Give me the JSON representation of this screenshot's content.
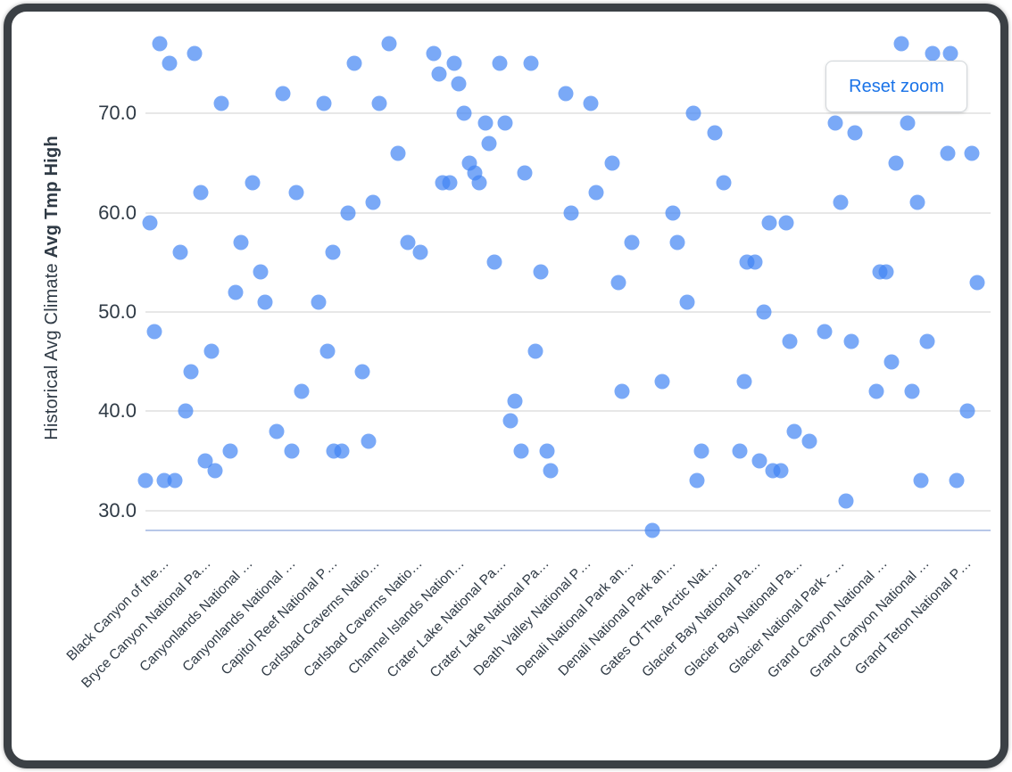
{
  "window": {
    "frame_color": "#3b4045",
    "background": "#ffffff"
  },
  "toolbar": {
    "reset_zoom_label": "Reset zoom"
  },
  "y_axis": {
    "title_prefix": "Historical Avg Climate ",
    "title_bold": "Avg Tmp High"
  },
  "chart_data": {
    "type": "scatter",
    "title": "",
    "xlabel": "",
    "ylabel": "Historical Avg Climate Avg Tmp High",
    "ylim": [
      28,
      78
    ],
    "grid": true,
    "legend_position": "none",
    "y_gridline_values": [
      70,
      60,
      50,
      40,
      30
    ],
    "y_tick_labels": [
      "70.0",
      "60.0",
      "50.0",
      "40.0",
      "30.0"
    ],
    "categories": [
      "Black Canyon of the…",
      "Bryce Canyon National Pa…",
      "Canyonlands National …",
      "Canyonlands National …",
      "Capitol Reef National P…",
      "Carlsbad Caverns Natio…",
      "Carlsbad Caverns Natio…",
      "Channel Islands Nation…",
      "Crater Lake National Pa…",
      "Crater Lake National Pa…",
      "Death Valley National P…",
      "Denali National Park an…",
      "Denali National Park an…",
      "Gates Of The Arctic Nat…",
      "Glacier Bay National Pa…",
      "Glacier Bay National Pa…",
      "Glacier National Park - …",
      "Grand Canyon National …",
      "Grand Canyon National …",
      "Grand Teton National P…"
    ],
    "points_format": "[x_percent_across_plot, avg_tmp_high_value]",
    "points": [
      [
        1.7,
        77
      ],
      [
        5.8,
        76
      ],
      [
        2.9,
        75
      ],
      [
        24.7,
        75
      ],
      [
        28.8,
        77
      ],
      [
        16.3,
        72
      ],
      [
        9.0,
        71
      ],
      [
        21.1,
        71
      ],
      [
        27.7,
        71
      ],
      [
        29.9,
        66
      ],
      [
        12.7,
        63
      ],
      [
        6.5,
        62
      ],
      [
        17.8,
        62
      ],
      [
        26.9,
        61
      ],
      [
        24.0,
        60
      ],
      [
        0.5,
        59
      ],
      [
        4.1,
        56
      ],
      [
        11.3,
        57
      ],
      [
        22.2,
        56
      ],
      [
        31.0,
        57
      ],
      [
        32.5,
        56
      ],
      [
        13.6,
        54
      ],
      [
        10.7,
        52
      ],
      [
        14.1,
        51
      ],
      [
        20.5,
        51
      ],
      [
        1.1,
        48
      ],
      [
        7.8,
        46
      ],
      [
        5.4,
        44
      ],
      [
        21.5,
        46
      ],
      [
        25.7,
        44
      ],
      [
        18.5,
        42
      ],
      [
        4.8,
        40
      ],
      [
        15.5,
        38
      ],
      [
        17.3,
        36
      ],
      [
        26.4,
        37
      ],
      [
        10.0,
        36
      ],
      [
        22.3,
        36
      ],
      [
        23.2,
        36
      ],
      [
        7.1,
        35
      ],
      [
        8.2,
        34
      ],
      [
        0.0,
        33
      ],
      [
        2.2,
        33
      ],
      [
        3.5,
        33
      ],
      [
        34.1,
        76
      ],
      [
        36.5,
        75
      ],
      [
        34.7,
        74
      ],
      [
        37.1,
        73
      ],
      [
        41.9,
        75
      ],
      [
        45.6,
        75
      ],
      [
        49.7,
        72
      ],
      [
        52.7,
        71
      ],
      [
        37.7,
        70
      ],
      [
        40.2,
        69
      ],
      [
        42.6,
        69
      ],
      [
        40.7,
        67
      ],
      [
        38.3,
        65
      ],
      [
        39.0,
        64
      ],
      [
        39.5,
        63
      ],
      [
        35.2,
        63
      ],
      [
        36.0,
        63
      ],
      [
        44.9,
        64
      ],
      [
        55.2,
        65
      ],
      [
        53.3,
        62
      ],
      [
        50.4,
        60
      ],
      [
        62.4,
        60
      ],
      [
        41.3,
        55
      ],
      [
        46.8,
        54
      ],
      [
        57.6,
        57
      ],
      [
        62.9,
        57
      ],
      [
        56.0,
        53
      ],
      [
        64.8,
        70
      ],
      [
        64.1,
        51
      ],
      [
        46.1,
        46
      ],
      [
        61.1,
        43
      ],
      [
        56.4,
        42
      ],
      [
        43.7,
        41
      ],
      [
        43.2,
        39
      ],
      [
        44.5,
        36
      ],
      [
        47.5,
        36
      ],
      [
        47.9,
        34
      ],
      [
        65.8,
        36
      ],
      [
        65.3,
        33
      ],
      [
        60.0,
        28
      ],
      [
        89.4,
        77
      ],
      [
        95.2,
        76
      ],
      [
        93.1,
        76
      ],
      [
        67.4,
        68
      ],
      [
        81.6,
        69
      ],
      [
        83.9,
        68
      ],
      [
        90.2,
        69
      ],
      [
        88.8,
        65
      ],
      [
        94.9,
        66
      ],
      [
        97.8,
        66
      ],
      [
        68.4,
        63
      ],
      [
        82.3,
        61
      ],
      [
        91.3,
        61
      ],
      [
        73.8,
        59
      ],
      [
        75.8,
        59
      ],
      [
        71.2,
        55
      ],
      [
        72.1,
        55
      ],
      [
        86.9,
        54
      ],
      [
        87.6,
        54
      ],
      [
        98.4,
        53
      ],
      [
        73.2,
        50
      ],
      [
        80.4,
        48
      ],
      [
        76.2,
        47
      ],
      [
        83.5,
        47
      ],
      [
        92.5,
        47
      ],
      [
        88.3,
        45
      ],
      [
        70.9,
        43
      ],
      [
        86.5,
        42
      ],
      [
        90.7,
        42
      ],
      [
        97.3,
        40
      ],
      [
        76.8,
        38
      ],
      [
        78.6,
        37
      ],
      [
        70.3,
        36
      ],
      [
        72.7,
        35
      ],
      [
        74.2,
        34
      ],
      [
        75.2,
        34
      ],
      [
        91.8,
        33
      ],
      [
        96.0,
        33
      ],
      [
        82.9,
        31
      ]
    ],
    "colors": {
      "point": "#4285f4",
      "point_opacity": 0.7,
      "gridline": "#e7e7e7",
      "baseline": "#b7c7e8",
      "text": "#2f3a45",
      "accent": "#1a73e8"
    }
  }
}
